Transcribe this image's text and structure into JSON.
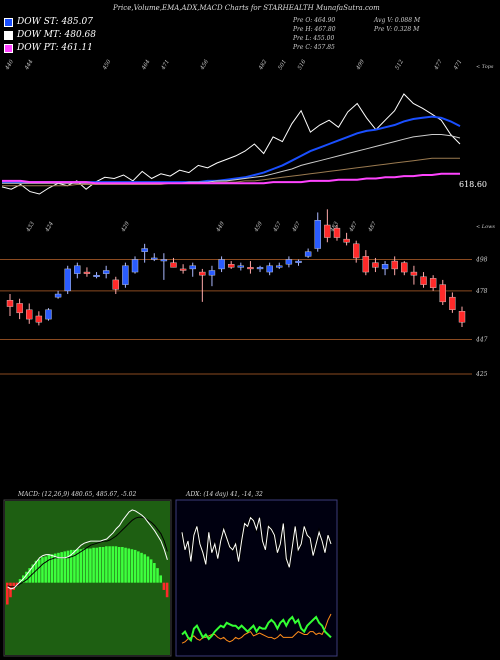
{
  "header": {
    "title": "Price,Volume,EMA,ADX,MACD Charts for STARHEALTH MunafaSutra.com"
  },
  "legend": [
    {
      "label": "DOW ST: 485.07",
      "color": "#1a4fff"
    },
    {
      "label": "DOW MT: 480.68",
      "color": "#ffffff"
    },
    {
      "label": "DOW PT: 461.11",
      "color": "#ff44ff"
    }
  ],
  "ohlc": {
    "open": "Pre O: 464.90",
    "high": "Pre H: 467.80",
    "low": "Pre L: 455.00",
    "close": "Pre C: 457.85",
    "avg_vol": "Avg V: 0.088 M",
    "pre_vol": "Pre V: 0.328 M"
  },
  "ema_panel": {
    "corner_label": "< Tops",
    "last_price_label": "618.60",
    "top_labels": [
      "440",
      "444",
      "",
      "",
      "",
      "450",
      "",
      "464",
      "471",
      "",
      "456",
      "",
      "",
      "482",
      "501",
      "516",
      "",
      "",
      "499",
      "",
      "512",
      "",
      "477",
      "471"
    ]
  },
  "price_panel": {
    "corner_label": "< Lows",
    "levels": [
      {
        "label": "498",
        "value": 498
      },
      {
        "label": "478",
        "value": 478
      },
      {
        "label": "447",
        "value": 447
      },
      {
        "label": "425",
        "value": 425
      }
    ],
    "low_labels": [
      "",
      "433",
      "424",
      "",
      "",
      "",
      "429",
      "",
      "",
      "",
      "",
      "449",
      "",
      "459",
      "457",
      "467",
      "",
      "483",
      "487",
      "487",
      "",
      "",
      "",
      "",
      ""
    ]
  },
  "chart_data": [
    {
      "type": "line",
      "title": "EMA",
      "series": [
        {
          "name": "",
          "color": "#ffffff",
          "values": [
            442,
            440,
            444,
            438,
            436,
            441,
            445,
            443,
            447,
            440,
            446,
            450,
            449,
            452,
            447,
            455,
            449,
            453,
            451,
            456,
            454,
            460,
            458,
            462,
            465,
            468,
            472,
            478,
            470,
            484,
            480,
            495,
            506,
            488,
            494,
            498,
            492,
            505,
            512,
            500,
            490,
            498,
            506,
            520,
            512,
            508,
            503,
            498,
            486,
            478
          ]
        },
        {
          "name": "",
          "color": "#1a4fff",
          "values": [
            446,
            446,
            446,
            446,
            446,
            446,
            446,
            446,
            446,
            446,
            446,
            446,
            446,
            446,
            446,
            446,
            446,
            446,
            446,
            446,
            446,
            446,
            447,
            447,
            448,
            449,
            450,
            452,
            454,
            457,
            460,
            464,
            468,
            472,
            475,
            478,
            481,
            484,
            487,
            489,
            490,
            492,
            494,
            497,
            499,
            500,
            501,
            500,
            497,
            493
          ]
        },
        {
          "name": "",
          "color": "#cccccc",
          "values": [
            445,
            445,
            445,
            445,
            445,
            445,
            445,
            445,
            445,
            445,
            445,
            445,
            445,
            445,
            445,
            445,
            445,
            445,
            445,
            445,
            446,
            446,
            446,
            447,
            447,
            448,
            449,
            450,
            451,
            453,
            455,
            457,
            460,
            462,
            464,
            466,
            468,
            470,
            472,
            474,
            476,
            478,
            480,
            482,
            484,
            485,
            486,
            486,
            485,
            483
          ]
        },
        {
          "name": "",
          "color": "#9a7a50",
          "values": [
            443,
            443,
            443,
            443,
            443,
            443,
            443,
            443,
            444,
            444,
            444,
            444,
            444,
            444,
            444,
            444,
            444,
            444,
            445,
            445,
            445,
            445,
            445,
            446,
            446,
            446,
            447,
            447,
            448,
            449,
            450,
            451,
            452,
            453,
            454,
            455,
            456,
            457,
            458,
            459,
            460,
            461,
            462,
            463,
            464,
            465,
            466,
            466,
            466,
            466
          ]
        },
        {
          "name": "",
          "color": "#ff44ff",
          "values": [
            447,
            447,
            447,
            446,
            446,
            446,
            446,
            446,
            446,
            446,
            445,
            445,
            445,
            445,
            445,
            445,
            445,
            445,
            445,
            445,
            445,
            445,
            445,
            445,
            445,
            445,
            445,
            445,
            445,
            446,
            446,
            446,
            446,
            447,
            447,
            447,
            448,
            448,
            448,
            449,
            449,
            450,
            450,
            451,
            451,
            452,
            452,
            453,
            453,
            453
          ]
        }
      ]
    },
    {
      "type": "candlestick",
      "title": "Price",
      "ylim": [
        418,
        520
      ],
      "candles": [
        {
          "o": 472,
          "h": 476,
          "l": 462,
          "c": 468
        },
        {
          "o": 470,
          "h": 473,
          "l": 460,
          "c": 464
        },
        {
          "o": 466,
          "h": 470,
          "l": 457,
          "c": 460
        },
        {
          "o": 462,
          "h": 465,
          "l": 456,
          "c": 458
        },
        {
          "o": 460,
          "h": 467,
          "l": 459,
          "c": 466
        },
        {
          "o": 474,
          "h": 478,
          "l": 473,
          "c": 476
        },
        {
          "o": 478,
          "h": 494,
          "l": 476,
          "c": 492
        },
        {
          "o": 489,
          "h": 496,
          "l": 486,
          "c": 494
        },
        {
          "o": 490,
          "h": 493,
          "l": 487,
          "c": 489
        },
        {
          "o": 488,
          "h": 490,
          "l": 486,
          "c": 488
        },
        {
          "o": 489,
          "h": 494,
          "l": 486,
          "c": 491
        },
        {
          "o": 485,
          "h": 487,
          "l": 476,
          "c": 479
        },
        {
          "o": 482,
          "h": 496,
          "l": 480,
          "c": 494
        },
        {
          "o": 490,
          "h": 500,
          "l": 489,
          "c": 498
        },
        {
          "o": 503,
          "h": 508,
          "l": 496,
          "c": 505
        },
        {
          "o": 499,
          "h": 502,
          "l": 497,
          "c": 499
        },
        {
          "o": 498,
          "h": 502,
          "l": 485,
          "c": 498
        },
        {
          "o": 496,
          "h": 499,
          "l": 493,
          "c": 493
        },
        {
          "o": 492,
          "h": 495,
          "l": 489,
          "c": 491
        },
        {
          "o": 492,
          "h": 496,
          "l": 487,
          "c": 494
        },
        {
          "o": 490,
          "h": 492,
          "l": 471,
          "c": 488
        },
        {
          "o": 488,
          "h": 494,
          "l": 481,
          "c": 491
        },
        {
          "o": 492,
          "h": 500,
          "l": 490,
          "c": 498
        },
        {
          "o": 495,
          "h": 497,
          "l": 492,
          "c": 493
        },
        {
          "o": 493,
          "h": 496,
          "l": 491,
          "c": 494
        },
        {
          "o": 493,
          "h": 497,
          "l": 489,
          "c": 492
        },
        {
          "o": 492,
          "h": 494,
          "l": 490,
          "c": 493
        },
        {
          "o": 490,
          "h": 496,
          "l": 488,
          "c": 494
        },
        {
          "o": 493,
          "h": 496,
          "l": 492,
          "c": 494
        },
        {
          "o": 495,
          "h": 500,
          "l": 493,
          "c": 498
        },
        {
          "o": 496,
          "h": 498,
          "l": 494,
          "c": 497
        },
        {
          "o": 500,
          "h": 505,
          "l": 499,
          "c": 503
        },
        {
          "o": 505,
          "h": 528,
          "l": 503,
          "c": 523
        },
        {
          "o": 520,
          "h": 530,
          "l": 509,
          "c": 512
        },
        {
          "o": 518,
          "h": 520,
          "l": 510,
          "c": 512
        },
        {
          "o": 511,
          "h": 515,
          "l": 507,
          "c": 509
        },
        {
          "o": 508,
          "h": 510,
          "l": 496,
          "c": 499
        },
        {
          "o": 500,
          "h": 504,
          "l": 488,
          "c": 490
        },
        {
          "o": 496,
          "h": 499,
          "l": 490,
          "c": 493
        },
        {
          "o": 492,
          "h": 497,
          "l": 488,
          "c": 495
        },
        {
          "o": 497,
          "h": 500,
          "l": 488,
          "c": 492
        },
        {
          "o": 496,
          "h": 497,
          "l": 488,
          "c": 490
        },
        {
          "o": 490,
          "h": 494,
          "l": 482,
          "c": 488
        },
        {
          "o": 487,
          "h": 490,
          "l": 480,
          "c": 482
        },
        {
          "o": 486,
          "h": 488,
          "l": 478,
          "c": 480
        },
        {
          "o": 482,
          "h": 485,
          "l": 469,
          "c": 471
        },
        {
          "o": 474,
          "h": 477,
          "l": 464,
          "c": 466
        },
        {
          "o": 465,
          "h": 468,
          "l": 455,
          "c": 458
        }
      ]
    },
    {
      "type": "bar",
      "title": "MACD",
      "label": "MACD: (12,26,9) 480.65, 485.67, -5.02",
      "hist": [
        -3,
        -2,
        -1,
        -0.5,
        0.5,
        1,
        1.5,
        2,
        2.5,
        3,
        3.2,
        3.5,
        3.6,
        3.8,
        3.9,
        4,
        4.1,
        4.2,
        4.3,
        4.4,
        4.5,
        4.5,
        4.6,
        4.6,
        4.7,
        4.7,
        4.7,
        4.8,
        4.8,
        4.9,
        4.9,
        5,
        5,
        5,
        5,
        4.9,
        4.9,
        4.8,
        4.7,
        4.6,
        4.5,
        4.3,
        4.1,
        3.9,
        3.6,
        3.2,
        2.7,
        2,
        1,
        -1,
        -2
      ],
      "macd": [
        -4,
        -6,
        -5,
        -2,
        1,
        4,
        8,
        12,
        16,
        20,
        24,
        26,
        27,
        27,
        26,
        25,
        24,
        24,
        24,
        25,
        27,
        30,
        33,
        36,
        38,
        39,
        40,
        40,
        40,
        40,
        41,
        42,
        45,
        48,
        52,
        55,
        60,
        64,
        68,
        70,
        69,
        67,
        65,
        62,
        58,
        54,
        50,
        45,
        40,
        32,
        22
      ],
      "signal": [
        -3,
        -4,
        -4,
        -3,
        -1,
        1,
        3,
        6,
        9,
        12,
        15,
        18,
        20,
        22,
        23,
        24,
        24,
        24,
        24,
        24,
        25,
        26,
        28,
        30,
        32,
        34,
        36,
        37,
        38,
        39,
        40,
        40,
        41,
        43,
        45,
        48,
        51,
        54,
        57,
        60,
        62,
        63,
        63,
        62,
        60,
        58,
        55,
        51,
        47,
        40,
        30
      ]
    },
    {
      "type": "line",
      "title": "ADX",
      "label": "ADX: (14 day) 41, -14, 32",
      "adx": [
        82,
        70,
        76,
        62,
        80,
        86,
        74,
        68,
        60,
        82,
        68,
        74,
        64,
        76,
        84,
        78,
        72,
        70,
        74,
        62,
        76,
        88,
        86,
        92,
        90,
        84,
        92,
        76,
        70,
        86,
        84,
        80,
        68,
        74,
        88,
        64,
        58,
        72,
        86,
        70,
        74,
        86,
        80,
        78,
        66,
        74,
        82,
        76,
        68,
        80,
        74
      ],
      "plus_di": [
        12,
        14,
        10,
        8,
        16,
        18,
        14,
        10,
        12,
        9,
        11,
        14,
        16,
        18,
        17,
        20,
        19,
        18,
        18,
        16,
        18,
        16,
        14,
        16,
        18,
        14,
        17,
        16,
        16,
        20,
        22,
        20,
        16,
        20,
        22,
        18,
        22,
        24,
        20,
        22,
        16,
        14,
        18,
        20,
        22,
        24,
        20,
        18,
        14,
        12,
        10
      ],
      "minus_di": [
        6,
        7,
        9,
        10,
        11,
        9,
        8,
        10,
        10,
        11,
        12,
        12,
        10,
        9,
        10,
        8,
        7,
        8,
        10,
        9,
        10,
        12,
        13,
        14,
        11,
        12,
        13,
        12,
        11,
        10,
        10,
        9,
        10,
        12,
        10,
        10,
        10,
        10,
        12,
        14,
        13,
        12,
        12,
        14,
        14,
        12,
        13,
        12,
        16,
        22,
        26
      ]
    }
  ]
}
